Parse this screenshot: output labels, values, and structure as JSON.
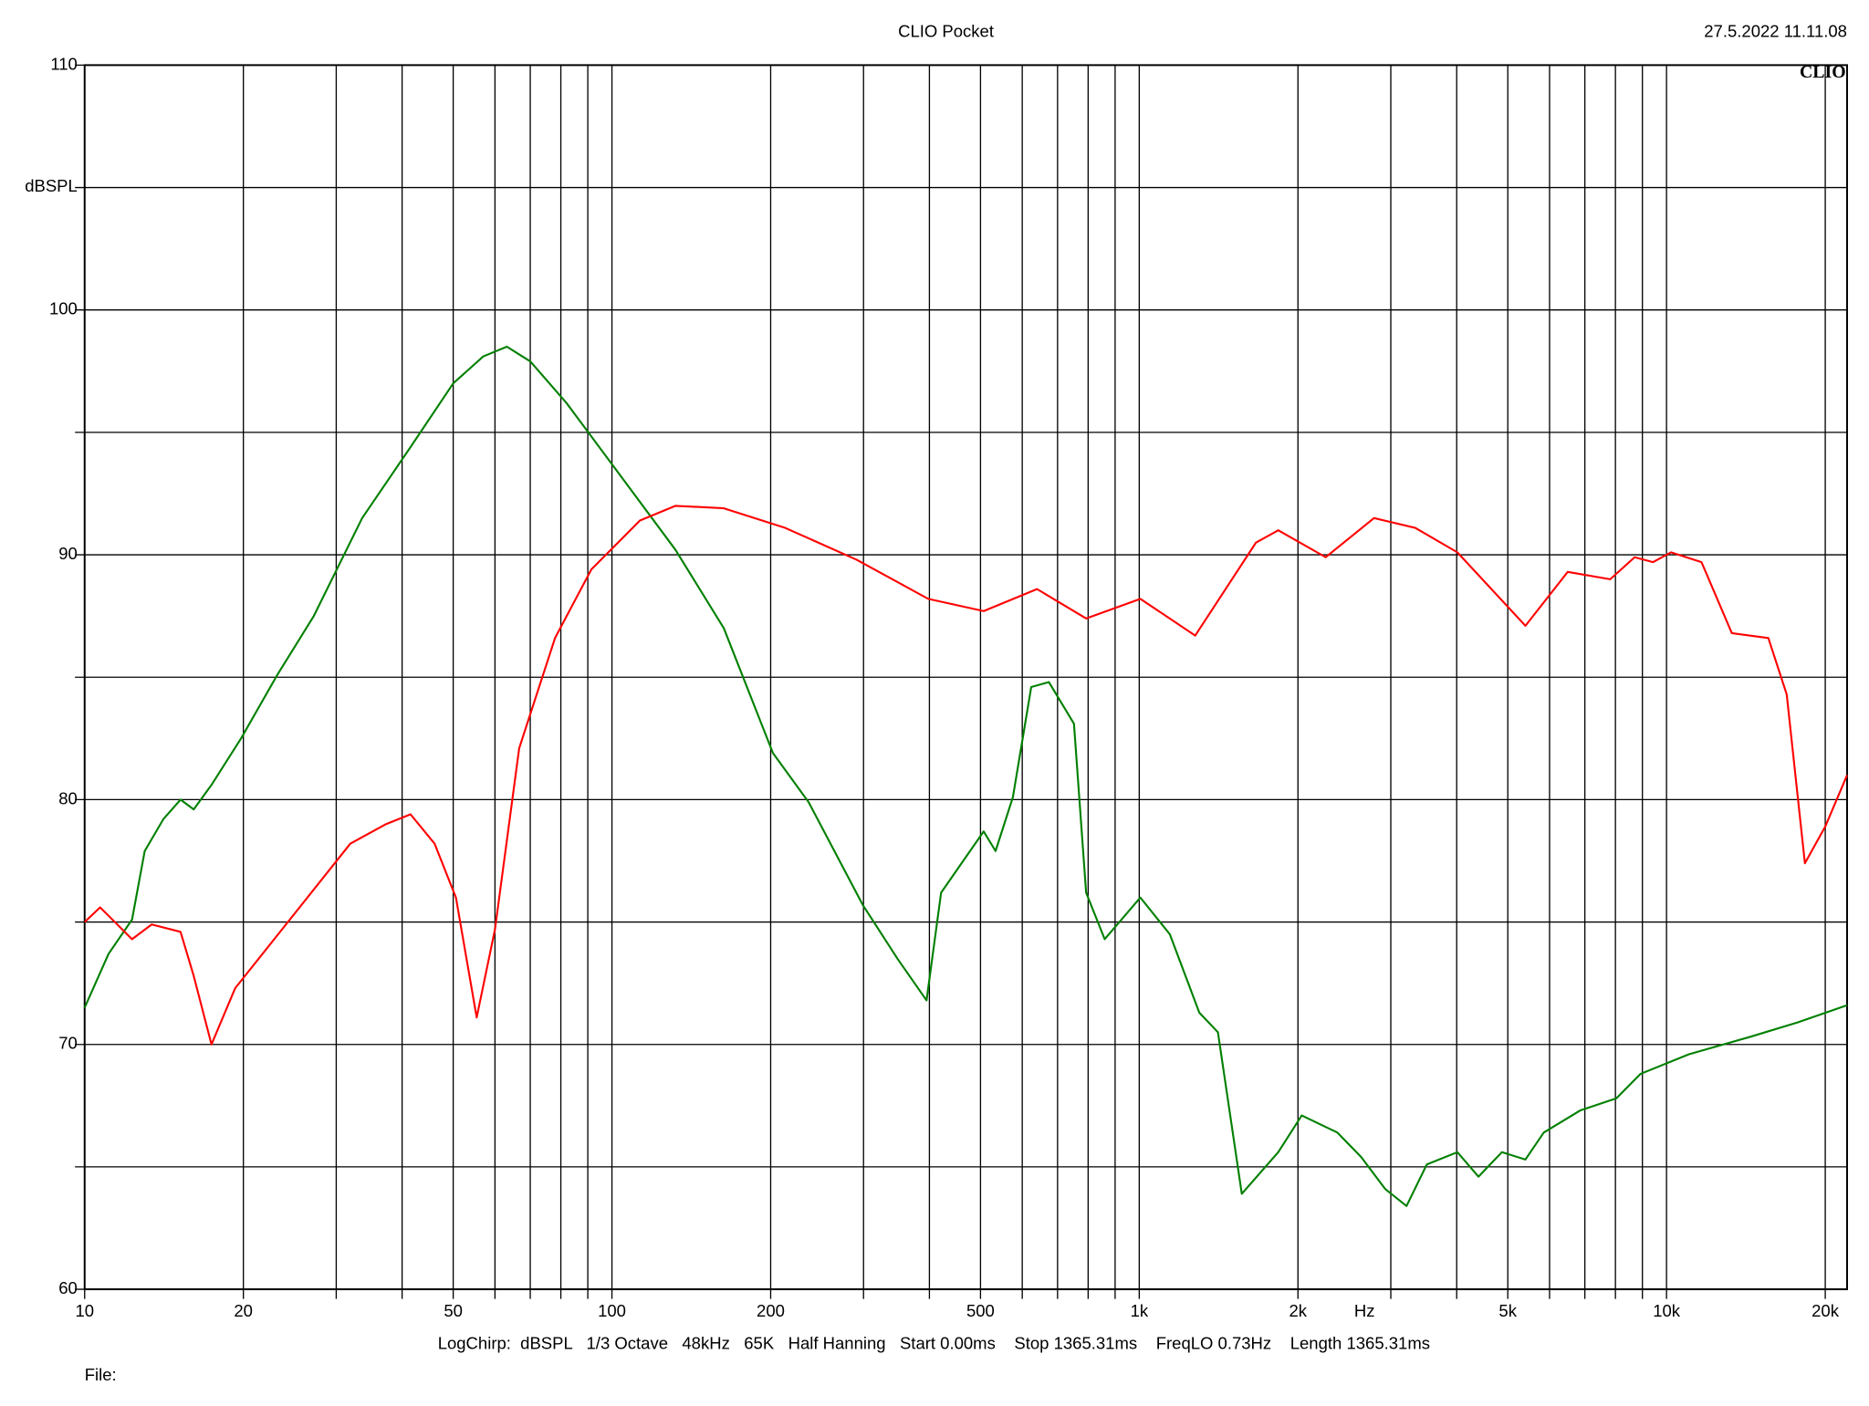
{
  "chart_data": {
    "type": "line",
    "title": "CLIO Pocket",
    "timestamp": "27.5.2022 11.11.08",
    "logo": "CLIO",
    "ylabel": "dBSPL",
    "xlabel": "Hz",
    "info": "LogChirp:  dBSPL   1/3 Octave   48kHz   65K   Half Hanning   Start 0.00ms    Stop 1365.31ms    FreqLO 0.73Hz    Length 1365.31ms",
    "file_label": "File:",
    "xscale": "log",
    "xlim": [
      10,
      22000
    ],
    "ylim": [
      60,
      110
    ],
    "grid": true,
    "yticks": [
      60,
      70,
      80,
      90,
      100,
      110
    ],
    "ygrid": [
      65,
      75,
      85,
      95,
      105
    ],
    "xticks": [
      10,
      20,
      50,
      100,
      200,
      500,
      {
        "value": 1000,
        "label": "1k"
      },
      {
        "value": 2000,
        "label": "2k"
      },
      {
        "value": 5000,
        "label": "5k"
      },
      {
        "value": 10000,
        "label": "10k"
      },
      {
        "value": 20000,
        "label": "20k"
      }
    ],
    "xgrid": [
      30,
      40,
      60,
      70,
      80,
      90,
      300,
      400,
      600,
      700,
      800,
      900,
      3000,
      4000,
      6000,
      7000,
      8000,
      9000
    ],
    "series": [
      {
        "color": "#008000",
        "x": [
          10,
          11.1,
          12.3,
          13,
          14.1,
          15.2,
          16.1,
          17.4,
          19.8,
          23.2,
          27.2,
          33.6,
          41.5,
          50,
          57,
          63.2,
          70,
          82,
          100,
          132,
          163,
          202,
          236,
          299,
          348,
          395,
          421,
          507,
          534,
          576,
          624,
          674,
          752,
          793,
          860,
          1005,
          1143,
          1300,
          1410,
          1565,
          1835,
          2033,
          2376,
          2636,
          2926,
          3213,
          3511,
          4012,
          4400,
          4872,
          5400,
          5850,
          6855,
          8035,
          8930,
          11030,
          14350,
          17720,
          22000
        ],
        "values": [
          71.5,
          73.7,
          75.1,
          77.9,
          79.2,
          80,
          79.6,
          80.6,
          82.5,
          85.1,
          87.5,
          91.5,
          94.4,
          97,
          98.1,
          98.5,
          97.9,
          96.2,
          93.7,
          90.2,
          87,
          81.9,
          79.9,
          75.7,
          73.5,
          71.8,
          76.2,
          78.7,
          77.9,
          80.1,
          84.6,
          84.8,
          83.1,
          76.2,
          74.3,
          76,
          74.5,
          71.3,
          70.5,
          63.9,
          65.6,
          67.1,
          66.4,
          65.4,
          64.1,
          63.4,
          65.1,
          65.6,
          64.6,
          65.6,
          65.3,
          66.4,
          67.3,
          67.8,
          68.8,
          69.6,
          70.3,
          70.9,
          71.6
        ]
      },
      {
        "color": "#ff0000",
        "x": [
          10,
          10.7,
          12.3,
          13.4,
          15.2,
          16.1,
          17.4,
          19.3,
          24.5,
          31.9,
          37.3,
          41.5,
          46.1,
          50.6,
          55.4,
          60,
          66.7,
          78,
          91.4,
          113,
          132,
          163,
          213,
          291,
          398,
          507,
          640,
          793,
          1005,
          1277,
          1665,
          1835,
          2258,
          2788,
          3338,
          4012,
          5400,
          6495,
          7820,
          8700,
          9430,
          10200,
          11650,
          13300,
          15600,
          16900,
          18300,
          20000,
          22000
        ],
        "values": [
          75,
          75.6,
          74.3,
          74.9,
          74.6,
          72.8,
          70,
          72.3,
          75.1,
          78.2,
          79,
          79.4,
          78.2,
          76,
          71.1,
          74.7,
          82.1,
          86.6,
          89.4,
          91.4,
          92,
          91.9,
          91.1,
          89.8,
          88.2,
          87.7,
          88.6,
          87.4,
          88.2,
          86.7,
          90.5,
          91,
          89.9,
          91.5,
          91.1,
          90.1,
          87.1,
          89.3,
          89,
          89.9,
          89.7,
          90.1,
          89.7,
          86.8,
          86.6,
          84.3,
          77.4,
          78.9,
          81
        ]
      }
    ]
  }
}
